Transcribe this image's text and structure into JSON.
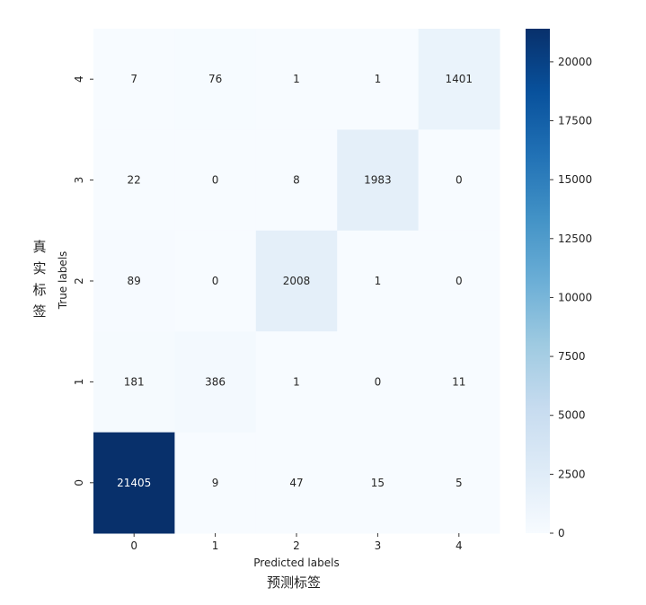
{
  "chart_data": {
    "type": "heatmap",
    "x_categories": [
      "0",
      "1",
      "2",
      "3",
      "4"
    ],
    "y_categories": [
      "4",
      "3",
      "2",
      "1",
      "0"
    ],
    "values": [
      [
        7,
        76,
        1,
        1,
        1401
      ],
      [
        22,
        0,
        8,
        1983,
        0
      ],
      [
        89,
        0,
        2008,
        1,
        0
      ],
      [
        181,
        386,
        1,
        0,
        11
      ],
      [
        21405,
        9,
        47,
        15,
        5
      ]
    ],
    "xlabel": "Predicted labels",
    "ylabel": "True labels",
    "xlabel_cn": "预测标签",
    "ylabel_cn": "真实标签",
    "colorbar": {
      "min": 0,
      "max": 21405,
      "ticks": [
        0,
        2500,
        5000,
        7500,
        10000,
        12500,
        15000,
        17500,
        20000
      ],
      "colormap": "Blues"
    }
  }
}
